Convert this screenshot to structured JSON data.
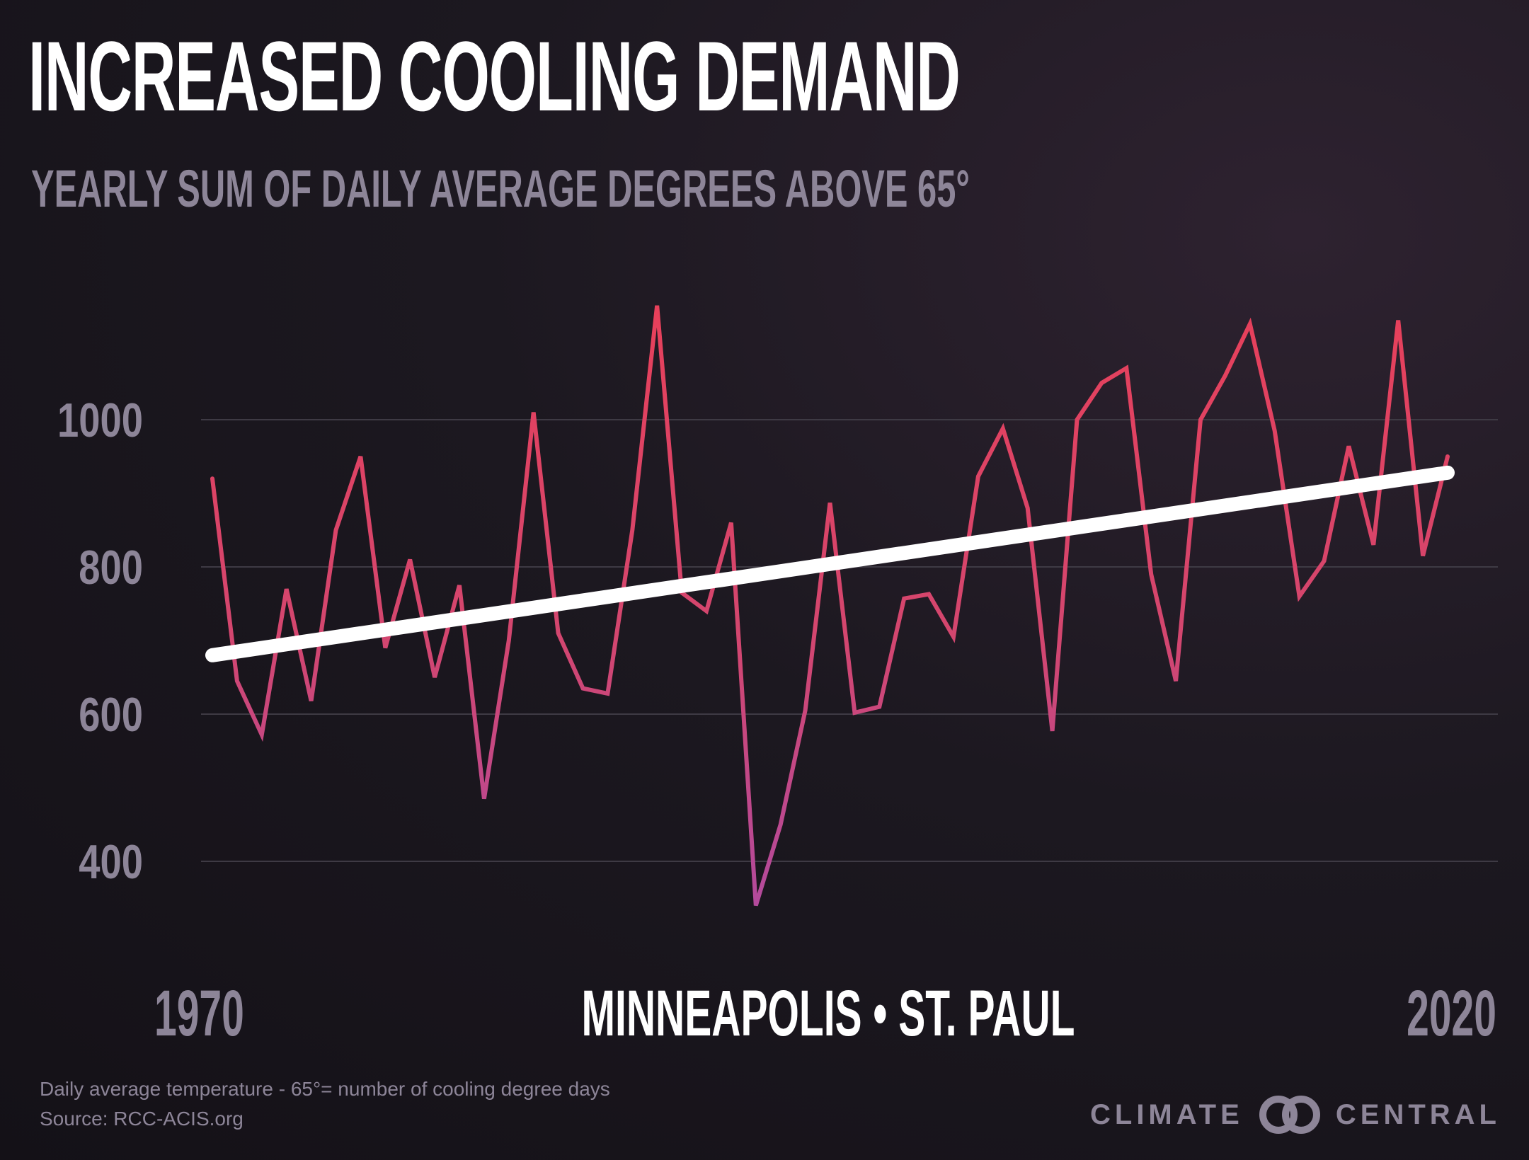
{
  "header": {
    "title": "INCREASED COOLING DEMAND",
    "subtitle": "YEARLY SUM OF DAILY AVERAGE DEGREES ABOVE 65°"
  },
  "location": "MINNEAPOLIS • ST. PAUL",
  "footnote": {
    "definition": "Daily average temperature - 65°= number of cooling degree days",
    "source": "Source:  RCC-ACIS.org"
  },
  "brand": {
    "left": "CLIMATE",
    "right": "CENTRAL",
    "logo_icon": "interlocking-circles-icon"
  },
  "colors": {
    "background": "#1a161c",
    "line_top": "#e8405a",
    "line_bottom": "#b24a9e",
    "trend": "#ffffff",
    "grid": "#3e3a44",
    "muted_text": "#8d8598"
  },
  "chart_data": {
    "type": "line",
    "title": "INCREASED COOLING DEMAND",
    "subtitle": "YEARLY SUM OF DAILY AVERAGE DEGREES ABOVE 65°",
    "xlabel": "",
    "ylabel": "",
    "x_tick_labels": [
      "1970",
      "2020"
    ],
    "xlim": [
      1970,
      2020
    ],
    "y_ticks": [
      400,
      600,
      800,
      1000
    ],
    "ylim": [
      300,
      1150
    ],
    "grid": true,
    "legend": "none",
    "x": [
      1970,
      1971,
      1972,
      1973,
      1974,
      1975,
      1976,
      1977,
      1978,
      1979,
      1980,
      1981,
      1982,
      1983,
      1984,
      1985,
      1986,
      1987,
      1988,
      1989,
      1990,
      1991,
      1992,
      1993,
      1994,
      1995,
      1996,
      1997,
      1998,
      1999,
      2000,
      2001,
      2002,
      2003,
      2004,
      2005,
      2006,
      2007,
      2008,
      2009,
      2010,
      2011,
      2012,
      2013,
      2014,
      2015,
      2016,
      2017,
      2018,
      2019,
      2020
    ],
    "series": [
      {
        "values": [
          920,
          645,
          572,
          770,
          618,
          850,
          950,
          690,
          810,
          650,
          775,
          485,
          700,
          1010,
          710,
          635,
          628,
          850,
          1155,
          765,
          740,
          860,
          340,
          450,
          605,
          887,
          602,
          610,
          757,
          763,
          705,
          923,
          988,
          880,
          577,
          1000,
          1050,
          1070,
          790,
          645,
          1000,
          1060,
          1130,
          985,
          760,
          808,
          964,
          830,
          1135,
          815,
          950
        ]
      }
    ],
    "trend": {
      "x": [
        1970,
        2020
      ],
      "values": [
        680,
        928
      ]
    }
  }
}
